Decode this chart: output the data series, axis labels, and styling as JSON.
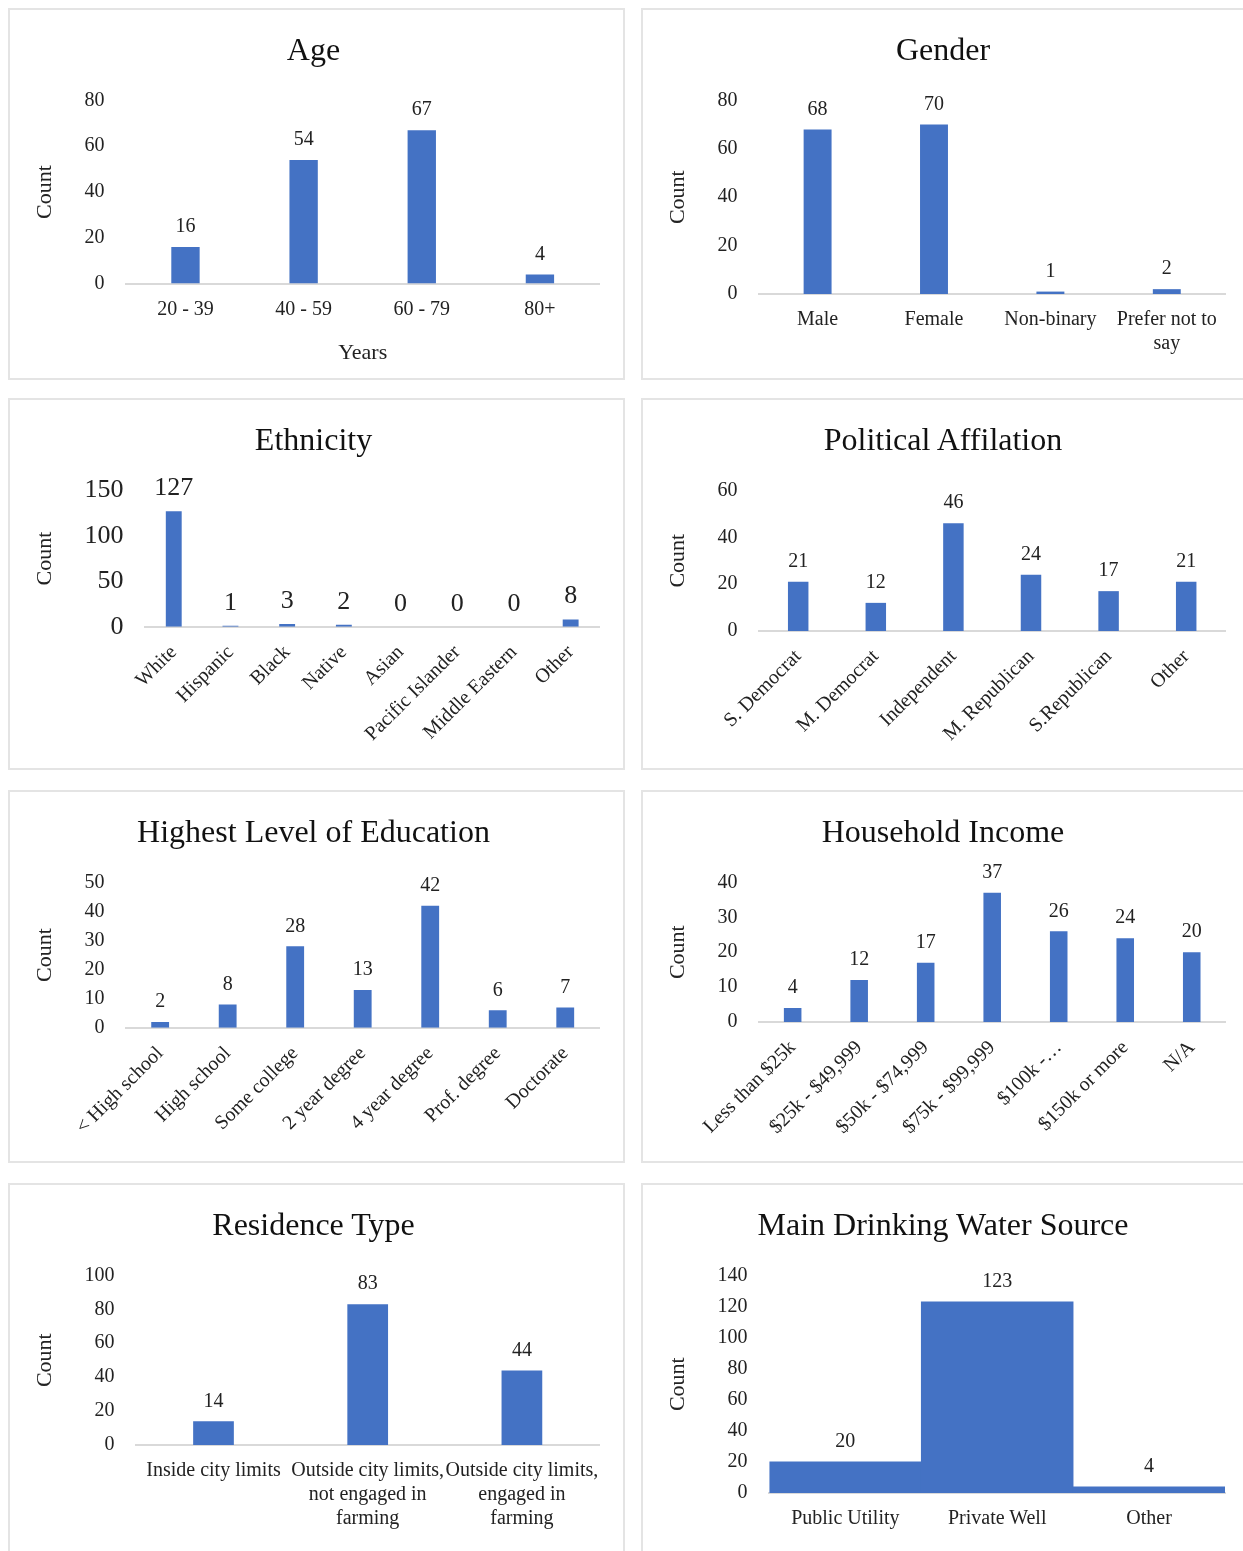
{
  "chart_data": [
    {
      "type": "bar",
      "title": "Age",
      "categories": [
        "20 - 39",
        "40 - 59",
        "60 - 79",
        "80+"
      ],
      "values": [
        16,
        54,
        67,
        4
      ],
      "color": "#4472c4",
      "ylim": [
        0,
        80
      ],
      "yticks": [
        0,
        20,
        40,
        60,
        80
      ],
      "xlabel": "Years",
      "ylabel": "Count",
      "data_labels": true
    },
    {
      "type": "bar",
      "title": "Gender",
      "categories": [
        "Male",
        "Female",
        "Non-binary",
        "Prefer not to say"
      ],
      "values": [
        68,
        70,
        1,
        2
      ],
      "color": "#4472c4",
      "ylim": [
        0,
        80
      ],
      "yticks": [
        0,
        20,
        40,
        60,
        80
      ],
      "ylabel": "Count",
      "data_labels": true
    },
    {
      "type": "bar",
      "title": "Ethnicity",
      "categories": [
        "White",
        "Hispanic",
        "Black",
        "Native",
        "Asian",
        "Pacific Islander",
        "Middle Eastern",
        "Other"
      ],
      "values": [
        127,
        1,
        3,
        2,
        0,
        0,
        0,
        8
      ],
      "color": "#4472c4",
      "ylim": [
        0,
        150
      ],
      "yticks": [
        0,
        50,
        100,
        150
      ],
      "ylabel": "Count",
      "data_labels": true
    },
    {
      "type": "bar",
      "title": "Political Affilation",
      "categories": [
        "S. Democrat",
        "M. Democrat",
        "Independent",
        "M. Republican",
        "S.Republican",
        "Other"
      ],
      "values": [
        21,
        12,
        46,
        24,
        17,
        21
      ],
      "color": "#4472c4",
      "ylim": [
        0,
        60
      ],
      "yticks": [
        0,
        20,
        40,
        60
      ],
      "ylabel": "Count",
      "data_labels": true
    },
    {
      "type": "bar",
      "title": "Highest Level of Education",
      "categories": [
        "< High school",
        "High school",
        "Some college",
        "2 year degree",
        "4 year degree",
        "Prof. degree",
        "Doctorate"
      ],
      "values": [
        2,
        8,
        28,
        13,
        42,
        6,
        7
      ],
      "color": "#4472c4",
      "ylim": [
        0,
        50
      ],
      "yticks": [
        0,
        10,
        20,
        30,
        40,
        50
      ],
      "ylabel": "Count",
      "data_labels": true
    },
    {
      "type": "bar",
      "title": "Household Income",
      "categories": [
        "Less than $25k",
        "$25k - $49,999",
        "$50k - $74,999",
        "$75k - $99,999",
        "$100k -…",
        "$150k or more",
        "N/A"
      ],
      "values": [
        4,
        12,
        17,
        37,
        26,
        24,
        20
      ],
      "color": "#4472c4",
      "ylim": [
        0,
        40
      ],
      "yticks": [
        0,
        10,
        20,
        30,
        40
      ],
      "ylabel": "Count",
      "data_labels": true
    },
    {
      "type": "bar",
      "title": "Residence Type",
      "categories": [
        "Inside city limits",
        "Outside city limits, not engaged in farming",
        "Outside city limits, engaged in farming"
      ],
      "values": [
        14,
        83,
        44
      ],
      "color": "#4472c4",
      "ylim": [
        0,
        100
      ],
      "yticks": [
        0,
        20,
        40,
        60,
        80,
        100
      ],
      "ylabel": "Count",
      "data_labels": true
    },
    {
      "type": "bar",
      "title": "Main Drinking Water Source",
      "categories": [
        "Public Utility",
        "Private Well",
        "Other"
      ],
      "values": [
        20,
        123,
        4
      ],
      "color": "#4472c4",
      "ylim": [
        0,
        140
      ],
      "yticks": [
        0,
        20,
        40,
        60,
        80,
        100,
        120,
        140
      ],
      "ylabel": "Count",
      "data_labels": true
    }
  ]
}
